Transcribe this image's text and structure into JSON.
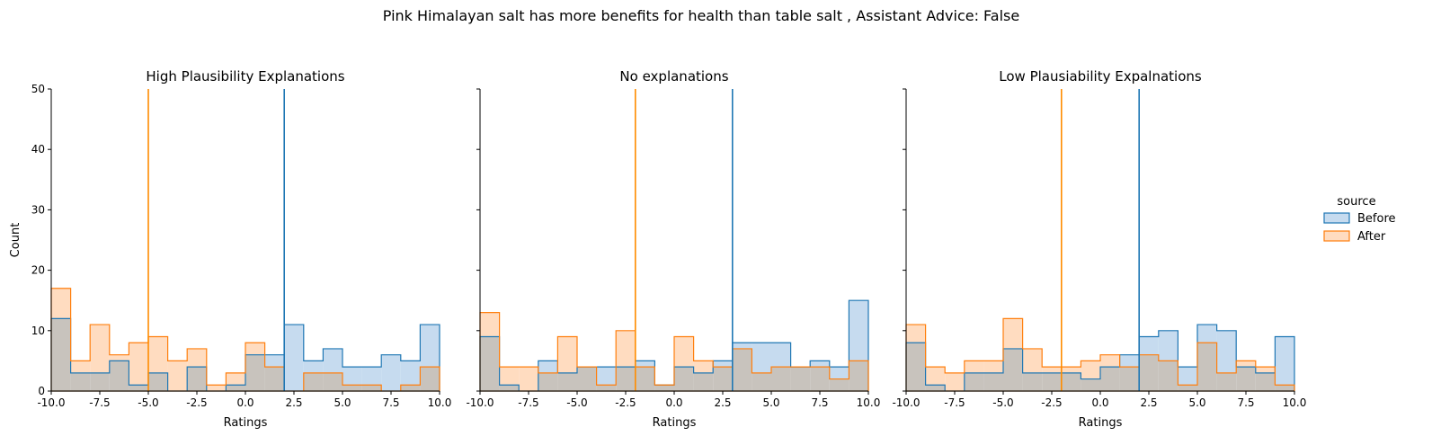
{
  "suptitle": "Pink Himalayan salt has more benefits for health than table salt , Assistant Advice: False",
  "legend": {
    "title": "source",
    "entries": [
      {
        "label": "Before",
        "color": "#1f77b4",
        "fill": "#c6dbef"
      },
      {
        "label": "After",
        "color": "#ff7f0e",
        "fill": "#ffdcc0"
      }
    ]
  },
  "colors": {
    "before": "#1f77b4",
    "after": "#ff7f0e",
    "after_mean_line": "#ff8c00",
    "overlap": "#c8c3bd"
  },
  "chart_data": [
    {
      "type": "histogram",
      "title": "High Plausibility Explanations",
      "xlabel": "Ratings",
      "ylabel": "Count",
      "xlim": [
        -10,
        10
      ],
      "ylim": [
        0,
        50
      ],
      "xticks": [
        "-10.0",
        "-7.5",
        "-5.0",
        "-2.5",
        "0.0",
        "2.5",
        "5.0",
        "7.5",
        "10.0"
      ],
      "yticks": [
        "0",
        "10",
        "20",
        "30",
        "40",
        "50"
      ],
      "bin_edges": [
        -10,
        -9,
        -8,
        -7,
        -6,
        -5,
        -4,
        -3,
        -2,
        -1,
        0,
        1,
        2,
        3,
        4,
        5,
        6,
        7,
        8,
        9,
        10
      ],
      "series": [
        {
          "name": "Before",
          "values": [
            12,
            3,
            3,
            5,
            1,
            3,
            0,
            4,
            0,
            1,
            6,
            6,
            11,
            5,
            7,
            4,
            4,
            6,
            5,
            11
          ],
          "mean": 2
        },
        {
          "name": "After",
          "values": [
            17,
            5,
            11,
            6,
            8,
            9,
            5,
            7,
            1,
            3,
            8,
            4,
            0,
            3,
            3,
            1,
            1,
            0,
            1,
            4
          ],
          "mean": -5
        }
      ]
    },
    {
      "type": "histogram",
      "title": "No explanations",
      "xlabel": "Ratings",
      "ylabel": "",
      "xlim": [
        -10,
        10
      ],
      "ylim": [
        0,
        50
      ],
      "xticks": [
        "-10.0",
        "-7.5",
        "-5.0",
        "-2.5",
        "0.0",
        "2.5",
        "5.0",
        "7.5",
        "10.0"
      ],
      "yticks": [],
      "bin_edges": [
        -10,
        -9,
        -8,
        -7,
        -6,
        -5,
        -4,
        -3,
        -2,
        -1,
        0,
        1,
        2,
        3,
        4,
        5,
        6,
        7,
        8,
        9,
        10
      ],
      "series": [
        {
          "name": "Before",
          "values": [
            9,
            1,
            0,
            5,
            3,
            4,
            4,
            4,
            5,
            1,
            4,
            3,
            5,
            8,
            8,
            8,
            4,
            5,
            4,
            15
          ],
          "mean": 3
        },
        {
          "name": "After",
          "values": [
            13,
            4,
            4,
            3,
            9,
            4,
            1,
            10,
            4,
            1,
            9,
            5,
            4,
            7,
            3,
            4,
            4,
            4,
            2,
            5
          ],
          "mean": -2
        }
      ]
    },
    {
      "type": "histogram",
      "title": "Low Plausiability Expalnations",
      "xlabel": "Ratings",
      "ylabel": "",
      "xlim": [
        -10,
        10
      ],
      "ylim": [
        0,
        50
      ],
      "xticks": [
        "-10.0",
        "-7.5",
        "-5.0",
        "-2.5",
        "0.0",
        "2.5",
        "5.0",
        "7.5",
        "10.0"
      ],
      "yticks": [],
      "bin_edges": [
        -10,
        -9,
        -8,
        -7,
        -6,
        -5,
        -4,
        -3,
        -2,
        -1,
        0,
        1,
        2,
        3,
        4,
        5,
        6,
        7,
        8,
        9,
        10
      ],
      "series": [
        {
          "name": "Before",
          "values": [
            8,
            1,
            0,
            3,
            3,
            7,
            3,
            3,
            3,
            2,
            4,
            6,
            9,
            10,
            4,
            11,
            10,
            4,
            3,
            9
          ],
          "mean": 2
        },
        {
          "name": "After",
          "values": [
            11,
            4,
            3,
            5,
            5,
            12,
            7,
            4,
            4,
            5,
            6,
            4,
            6,
            5,
            1,
            8,
            3,
            5,
            4,
            1
          ],
          "mean": -2
        }
      ]
    }
  ]
}
